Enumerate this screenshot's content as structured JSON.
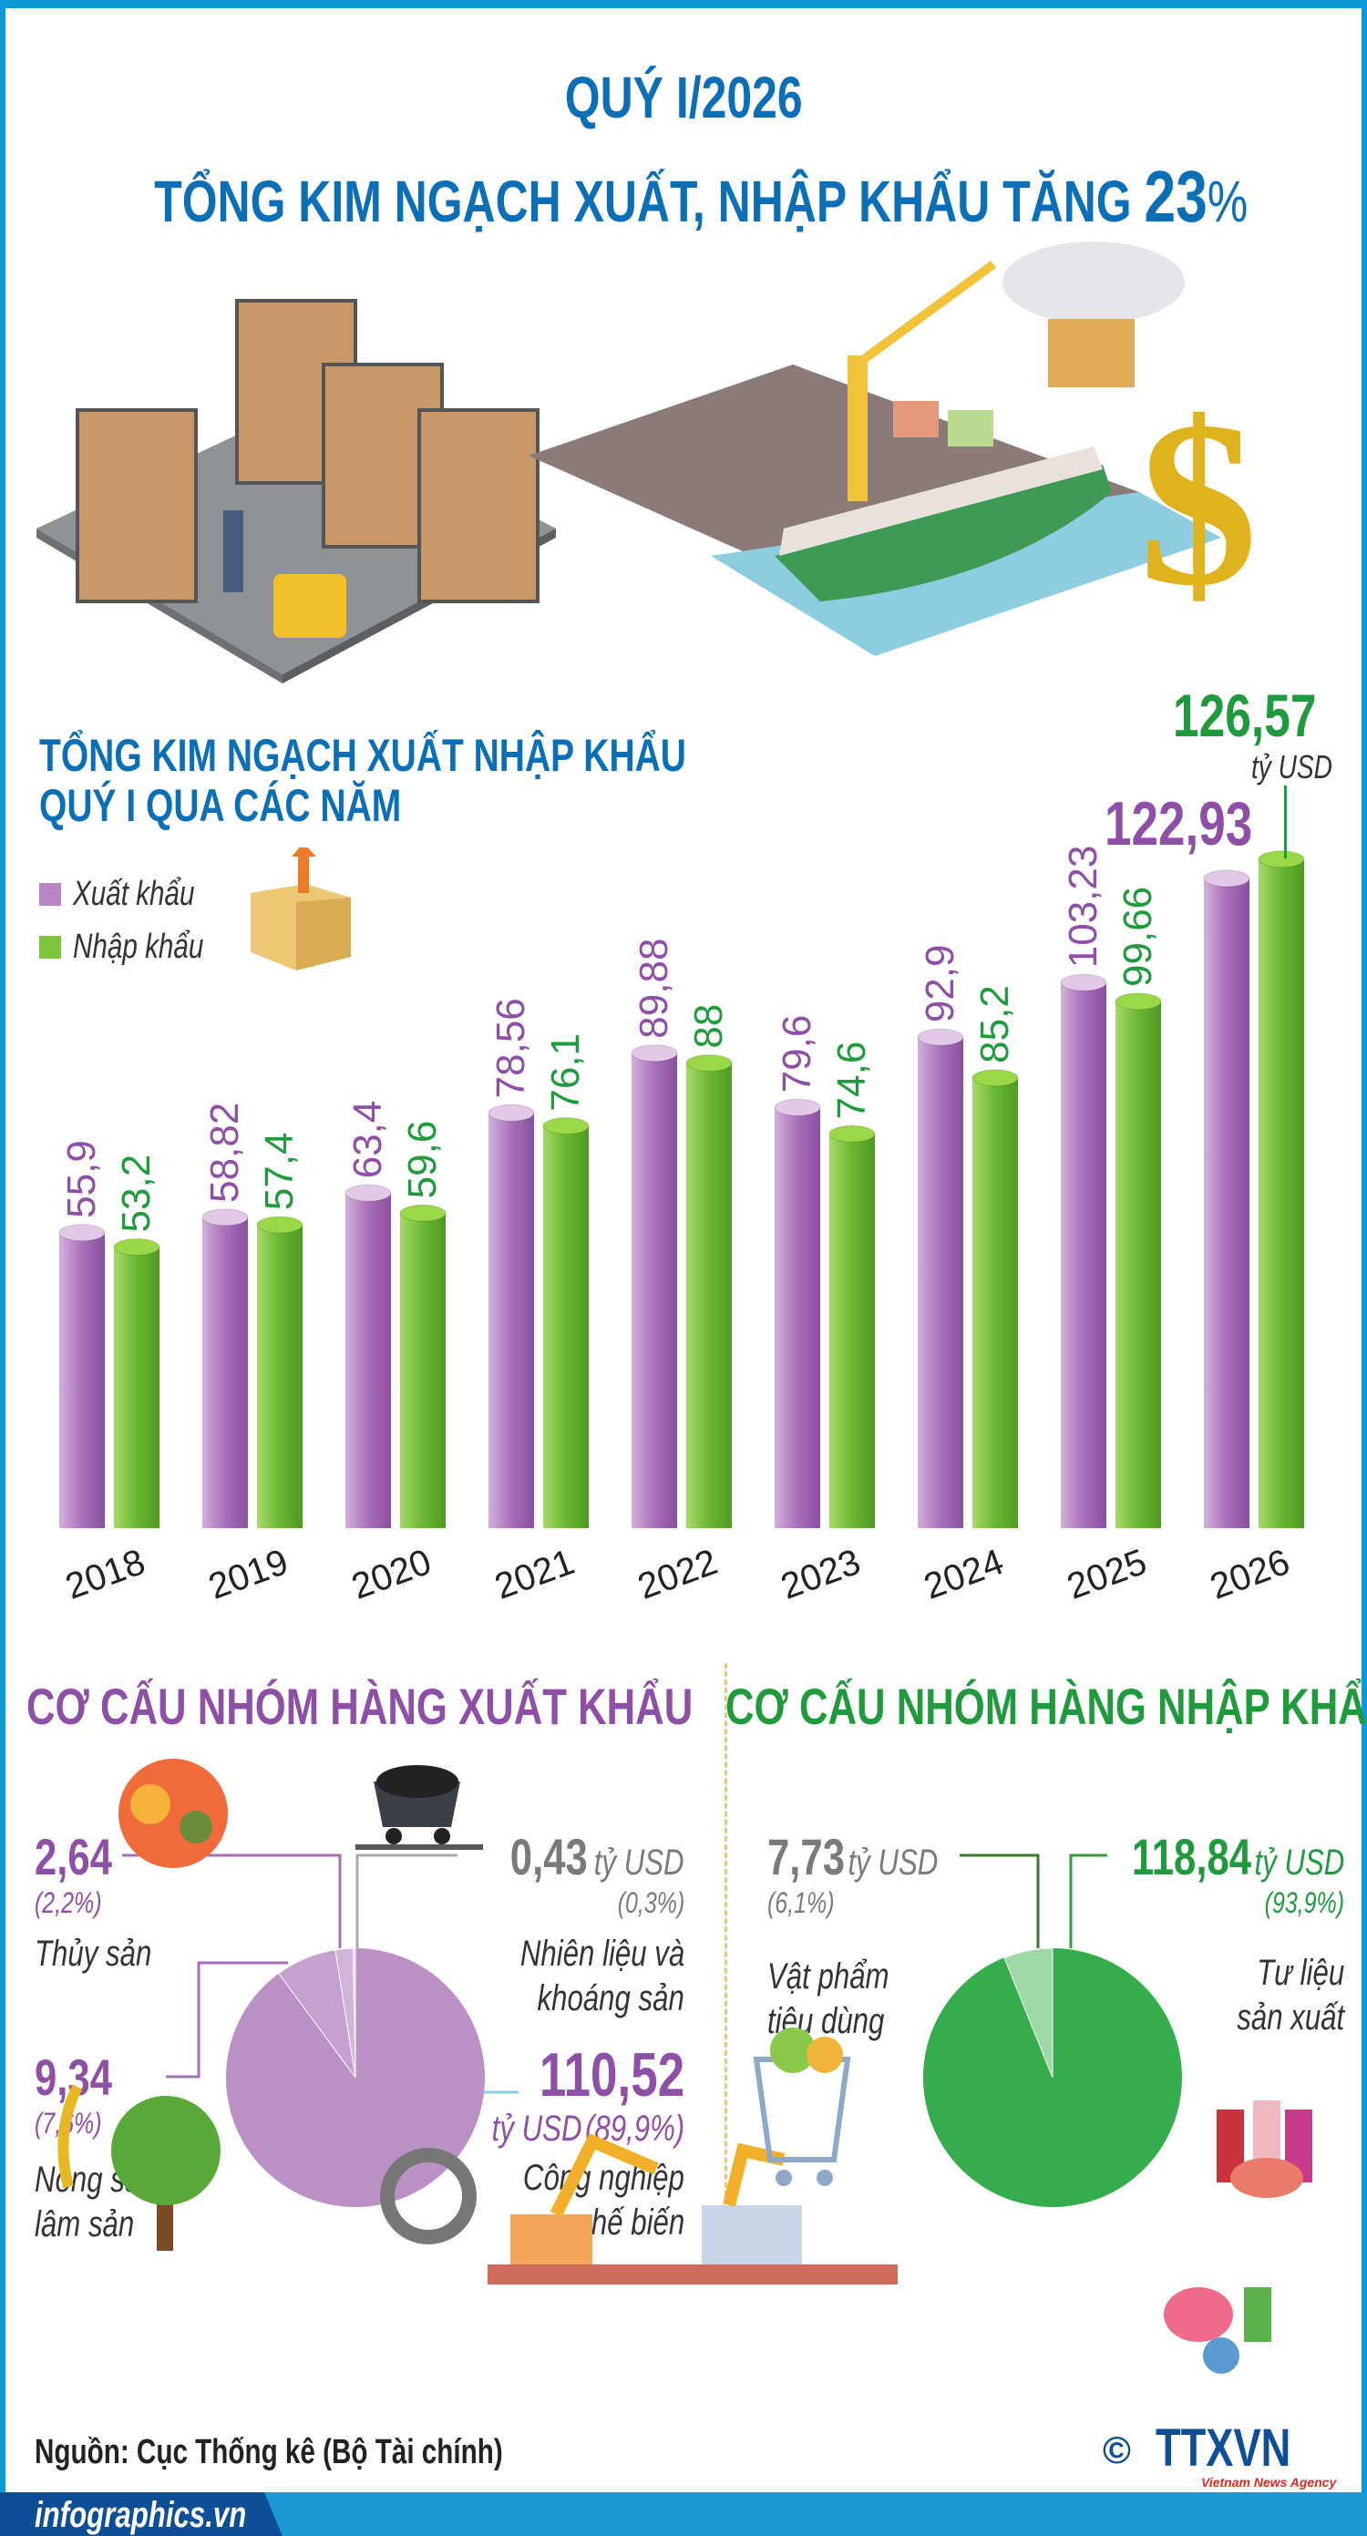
{
  "header": {
    "title_line1": "QUÝ I/2026",
    "title_line2": "TỔNG KIM NGẠCH XUẤT, NHẬP KHẨU TĂNG",
    "title_highlight": "23",
    "title_percent": "%"
  },
  "colors": {
    "brand_blue": "#0a6fb7",
    "export_purple": "#8e4fa6",
    "import_green": "#1f9a3c",
    "border_blue": "#0b9ad9"
  },
  "chart_data": [
    {
      "type": "bar",
      "title": "TỔNG KIM NGẠCH XUẤT NHẬP KHẨU QUÝ I QUA CÁC NĂM",
      "title_line1": "TỔNG KIM NGẠCH XUẤT NHẬP KHẨU",
      "title_line2": "QUÝ I QUA CÁC NĂM",
      "unit": "tỷ USD",
      "categories": [
        "2018",
        "2019",
        "2020",
        "2021",
        "2022",
        "2023",
        "2024",
        "2025",
        "2026"
      ],
      "series": [
        {
          "name": "Xuất khẩu",
          "color": "#b884c6",
          "values": [
            55.9,
            58.82,
            63.4,
            78.56,
            89.88,
            79.6,
            92.9,
            103.23,
            122.93
          ],
          "labels": [
            "55,9",
            "58,82",
            "63,4",
            "78,56",
            "89,88",
            "79,6",
            "92,9",
            "103,23",
            "122,93"
          ]
        },
        {
          "name": "Nhập khẩu",
          "color": "#7cc43a",
          "values": [
            53.2,
            57.4,
            59.6,
            76.1,
            88,
            74.6,
            85.2,
            99.66,
            126.57
          ],
          "labels": [
            "53,2",
            "57,4",
            "59,6",
            "76,1",
            "88",
            "74,6",
            "85,2",
            "99,66",
            "126,57"
          ]
        }
      ],
      "legend_position": "top-left",
      "grid": false
    },
    {
      "type": "pie",
      "title": "CƠ CẤU NHÓM HÀNG XUẤT KHẨU",
      "slices": [
        {
          "label_line1": "Nhiên liệu và",
          "label_line2": "khoáng sản",
          "value": 0.43,
          "value_label": "0,43",
          "unit": "tỷ USD",
          "percent": 0.3,
          "percent_label": "(0,3%)",
          "color": "#e4d3e8"
        },
        {
          "label_line1": "Thủy sản",
          "label_line2": "",
          "value": 2.64,
          "value_label": "2,64",
          "percent": 2.2,
          "percent_label": "(2,2%)",
          "color": "#d2b3da"
        },
        {
          "label_line1": "Nông sản,",
          "label_line2": "lâm sản",
          "value": 9.34,
          "value_label": "9,34",
          "percent": 7.6,
          "percent_label": "(7,6%)",
          "color": "#c6a0cf"
        },
        {
          "label_line1": "Công nghiệp",
          "label_line2": "chế biến",
          "value": 110.52,
          "value_label": "110,52",
          "unit": "tỷ USD",
          "percent": 89.9,
          "percent_label": "(89,9%)",
          "color": "#bb90c5"
        }
      ]
    },
    {
      "type": "pie",
      "title": "CƠ CẤU NHÓM HÀNG NHẬP KHẨU",
      "slices": [
        {
          "label_line1": "Vật phẩm",
          "label_line2": "tiêu dùng",
          "value": 7.73,
          "value_label": "7,73",
          "unit": "tỷ USD",
          "percent": 6.1,
          "percent_label": "(6,1%)",
          "color": "#9ed8a6"
        },
        {
          "label_line1": "Tư liệu",
          "label_line2": "sản xuất",
          "value": 118.84,
          "value_label": "118,84",
          "unit": "tỷ USD",
          "percent": 93.9,
          "percent_label": "(93,9%)",
          "color": "#36ad4c"
        }
      ]
    }
  ],
  "footer": {
    "source": "Nguồn: Cục Thống kê (Bộ Tài chính)",
    "site": "infographics.vn",
    "logo_text": "TTXVN",
    "logo_sub": "Vietnam News Agency",
    "copyright_symbol": "©"
  }
}
